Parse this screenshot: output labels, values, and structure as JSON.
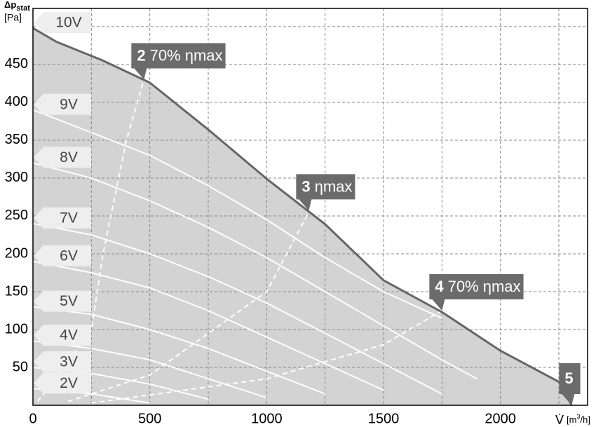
{
  "chart_data": {
    "type": "line",
    "ylabel": {
      "main": "Δp",
      "sub": "stat",
      "unit": "[Pa]"
    },
    "xlabel": {
      "main": "V̇",
      "unit_pre": "[m",
      "sup": "3",
      "unit_post": "/h]"
    },
    "xlim": [
      0,
      2373
    ],
    "ylim": [
      0,
      524
    ],
    "xticks": [
      0,
      500,
      1000,
      1500,
      2000
    ],
    "xminor": [
      250,
      750,
      1250,
      1750,
      2250
    ],
    "yticks": [
      50,
      100,
      150,
      200,
      250,
      300,
      350,
      400,
      450
    ],
    "yminor": [
      500
    ],
    "grid": true,
    "series": [
      {
        "name": "10V",
        "color": "#666666",
        "envelope": true,
        "x": [
          0,
          100,
          300,
          500,
          750,
          1000,
          1250,
          1500,
          1750,
          2000,
          2250,
          2305
        ],
        "values": [
          498,
          480,
          455,
          426,
          364,
          299,
          239,
          165,
          123,
          72,
          31,
          0
        ]
      },
      {
        "name": "9V",
        "color": "#ffffff",
        "x": [
          0,
          250,
          500,
          750,
          1000,
          1250,
          1500,
          1750
        ],
        "values": [
          390,
          360,
          330,
          290,
          245,
          195,
          150,
          115
        ]
      },
      {
        "name": "8V",
        "color": "#ffffff",
        "x": [
          0,
          250,
          500,
          750,
          1000,
          1250,
          1500,
          1750,
          1900
        ],
        "values": [
          320,
          300,
          270,
          235,
          195,
          150,
          105,
          60,
          35
        ]
      },
      {
        "name": "7V",
        "color": "#ffffff",
        "x": [
          0,
          250,
          500,
          750,
          1000,
          1250,
          1500,
          1750
        ],
        "values": [
          240,
          225,
          200,
          170,
          135,
          95,
          55,
          15
        ]
      },
      {
        "name": "6V",
        "color": "#ffffff",
        "x": [
          0,
          250,
          500,
          750,
          1000,
          1250,
          1500
        ],
        "values": [
          190,
          175,
          155,
          125,
          90,
          55,
          20
        ]
      },
      {
        "name": "5V",
        "color": "#ffffff",
        "x": [
          0,
          250,
          500,
          750,
          1000,
          1250
        ],
        "values": [
          130,
          120,
          100,
          75,
          45,
          15
        ]
      },
      {
        "name": "4V",
        "color": "#ffffff",
        "x": [
          0,
          250,
          500,
          750,
          1000
        ],
        "values": [
          85,
          75,
          60,
          35,
          10
        ]
      },
      {
        "name": "3V",
        "color": "#ffffff",
        "x": [
          0,
          250,
          500,
          750
        ],
        "values": [
          50,
          42,
          28,
          8
        ]
      },
      {
        "name": "2V",
        "color": "#ffffff",
        "x": [
          0,
          250,
          500
        ],
        "values": [
          22,
          15,
          3
        ]
      }
    ],
    "efficiency_lines": [
      {
        "x": [
          20,
          250,
          300,
          400,
          475
        ],
        "values": [
          5,
          100,
          200,
          350,
          430
        ]
      },
      {
        "x": [
          150,
          500,
          1000,
          1180
        ],
        "values": [
          5,
          40,
          150,
          255
        ]
      },
      {
        "x": [
          250,
          1000,
          1500,
          1750
        ],
        "values": [
          3,
          35,
          80,
          125
        ]
      }
    ],
    "annotations": [
      {
        "number": "2",
        "text": "70% ηmax",
        "x": 475,
        "y": 430
      },
      {
        "number": "3",
        "text": "ηmax",
        "x": 1180,
        "y": 257
      },
      {
        "number": "4",
        "text": "70% ηmax",
        "x": 1750,
        "y": 125
      },
      {
        "number": "5",
        "x": 2305,
        "y": 0
      }
    ]
  }
}
